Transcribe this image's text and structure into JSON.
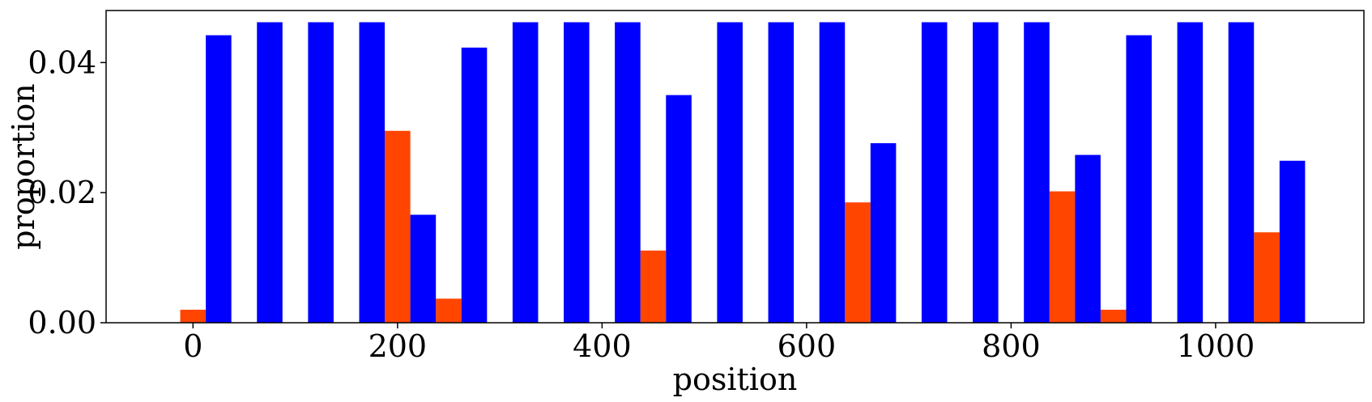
{
  "chart_data": {
    "type": "bar",
    "xlabel": "position",
    "ylabel": "proportion",
    "xlim": [
      -85,
      1145
    ],
    "ylim": [
      0,
      0.048
    ],
    "xticks": [
      0,
      200,
      400,
      600,
      800,
      1000
    ],
    "yticks": [
      0,
      0.02,
      0.04
    ],
    "xtick_labels": [
      "0",
      "200",
      "400",
      "600",
      "800",
      "1000"
    ],
    "ytick_labels": [
      "0.00",
      "0.02",
      "0.04"
    ],
    "bar_width": 25,
    "grid": false,
    "series": [
      {
        "color": "#FF4500",
        "points": [
          {
            "x": 0,
            "y": 0.002
          },
          {
            "x": 200,
            "y": 0.0295
          },
          {
            "x": 250,
            "y": 0.0037
          },
          {
            "x": 450,
            "y": 0.0111
          },
          {
            "x": 650,
            "y": 0.0185
          },
          {
            "x": 850,
            "y": 0.0202
          },
          {
            "x": 900,
            "y": 0.002
          },
          {
            "x": 1050,
            "y": 0.0139
          }
        ]
      },
      {
        "color": "#0000FF",
        "points": [
          {
            "x": 25,
            "y": 0.0442
          },
          {
            "x": 75,
            "y": 0.0462
          },
          {
            "x": 125,
            "y": 0.0462
          },
          {
            "x": 175,
            "y": 0.0462
          },
          {
            "x": 225,
            "y": 0.0166
          },
          {
            "x": 275,
            "y": 0.0423
          },
          {
            "x": 325,
            "y": 0.0462
          },
          {
            "x": 375,
            "y": 0.0462
          },
          {
            "x": 425,
            "y": 0.0462
          },
          {
            "x": 475,
            "y": 0.035
          },
          {
            "x": 525,
            "y": 0.0462
          },
          {
            "x": 575,
            "y": 0.0462
          },
          {
            "x": 625,
            "y": 0.0462
          },
          {
            "x": 675,
            "y": 0.0276
          },
          {
            "x": 725,
            "y": 0.0462
          },
          {
            "x": 775,
            "y": 0.0462
          },
          {
            "x": 825,
            "y": 0.0462
          },
          {
            "x": 875,
            "y": 0.0258
          },
          {
            "x": 925,
            "y": 0.0442
          },
          {
            "x": 975,
            "y": 0.0462
          },
          {
            "x": 1025,
            "y": 0.0462
          },
          {
            "x": 1075,
            "y": 0.0249
          }
        ]
      }
    ]
  }
}
